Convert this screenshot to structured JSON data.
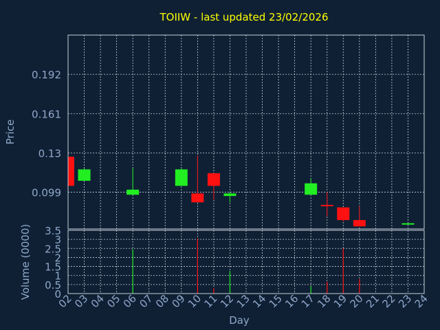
{
  "chart_data": {
    "type": "candlestick",
    "title": "TOIIW - last updated 23/02/2026",
    "xlabel": "Day",
    "price_ylabel": "Price",
    "volume_ylabel": "Volume (0000)",
    "x_ticks": [
      "02",
      "03",
      "04",
      "05",
      "06",
      "07",
      "08",
      "09",
      "10",
      "11",
      "12",
      "13",
      "14",
      "15",
      "16",
      "17",
      "18",
      "19",
      "20",
      "21",
      "22",
      "23",
      "24"
    ],
    "price_ticks": [
      "0.192",
      "0.161",
      "0.13",
      "0.099"
    ],
    "price_ylim": [
      0.07,
      0.223
    ],
    "volume_ticks": [
      "0",
      "0.5",
      "1",
      "1.5",
      "2",
      "2.5",
      "3",
      "3.5"
    ],
    "volume_ylim": [
      0,
      3.5
    ],
    "grid": true,
    "colors": {
      "background": "#0f2035",
      "up": "#22ee22",
      "down": "#ff1111",
      "text": "#8fa8c8",
      "title": "#ffff00",
      "grid": "#c8d0d8",
      "axis": "#c8d0d8"
    },
    "candles": [
      {
        "day": "02",
        "open": 0.127,
        "high": 0.127,
        "low": 0.104,
        "close": 0.104
      },
      {
        "day": "03",
        "open": 0.108,
        "high": 0.118,
        "low": 0.108,
        "close": 0.117
      },
      {
        "day": "06",
        "open": 0.097,
        "high": 0.118,
        "low": 0.097,
        "close": 0.101
      },
      {
        "day": "09",
        "open": 0.104,
        "high": 0.118,
        "low": 0.104,
        "close": 0.117
      },
      {
        "day": "10",
        "open": 0.098,
        "high": 0.128,
        "low": 0.091,
        "close": 0.091
      },
      {
        "day": "11",
        "open": 0.114,
        "high": 0.114,
        "low": 0.093,
        "close": 0.104
      },
      {
        "day": "12",
        "open": 0.096,
        "high": 0.099,
        "low": 0.091,
        "close": 0.098
      },
      {
        "day": "17",
        "open": 0.097,
        "high": 0.11,
        "low": 0.097,
        "close": 0.106
      },
      {
        "day": "18",
        "open": 0.089,
        "high": 0.099,
        "low": 0.08,
        "close": 0.088
      },
      {
        "day": "19",
        "open": 0.087,
        "high": 0.087,
        "low": 0.076,
        "close": 0.077
      },
      {
        "day": "20",
        "open": 0.077,
        "high": 0.088,
        "low": 0.072,
        "close": 0.072
      },
      {
        "day": "23",
        "open": 0.0735,
        "high": 0.0745,
        "low": 0.0735,
        "close": 0.0745
      }
    ],
    "volume": [
      {
        "day": "06",
        "value": 2.45,
        "dir": "up"
      },
      {
        "day": "10",
        "value": 3.05,
        "dir": "down"
      },
      {
        "day": "11",
        "value": 0.3,
        "dir": "down"
      },
      {
        "day": "12",
        "value": 1.25,
        "dir": "up"
      },
      {
        "day": "17",
        "value": 0.4,
        "dir": "up"
      },
      {
        "day": "18",
        "value": 0.65,
        "dir": "down"
      },
      {
        "day": "19",
        "value": 2.5,
        "dir": "down"
      },
      {
        "day": "20",
        "value": 0.8,
        "dir": "down"
      }
    ]
  }
}
